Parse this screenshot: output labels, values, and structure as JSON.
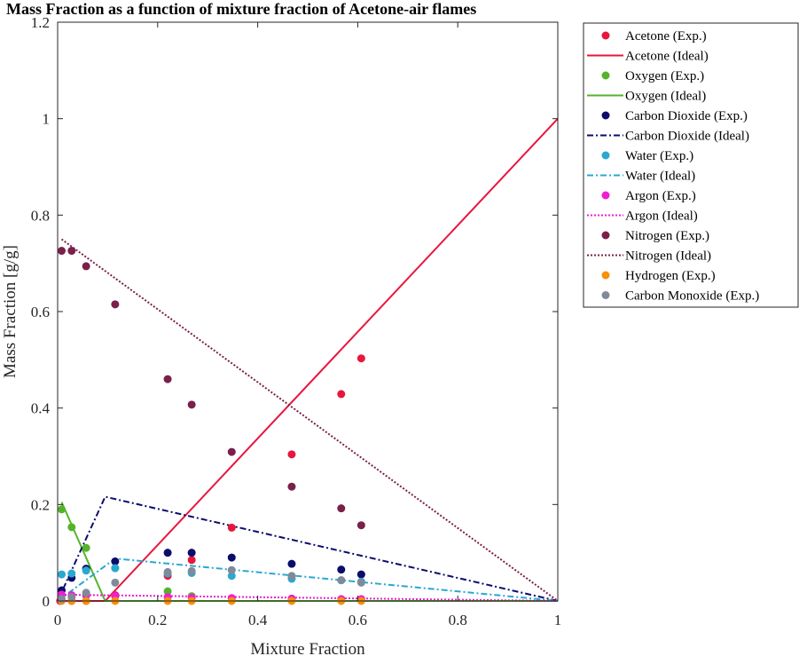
{
  "chart_data": {
    "type": "scatter",
    "title": "Mass Fraction as a function of mixture fraction of Acetone-air flames",
    "xlabel": "Mixture Fraction",
    "ylabel": "Mass Fraction [g/g]",
    "xlim": [
      0,
      1
    ],
    "ylim": [
      0,
      1.2
    ],
    "xticks": [
      0,
      0.2,
      0.4,
      0.6,
      0.8,
      1
    ],
    "xtick_labels": [
      "0",
      "0.2",
      "0.4",
      "0.6",
      "0.8",
      "1"
    ],
    "yticks": [
      0,
      0.2,
      0.4,
      0.6,
      0.8,
      1,
      1.2
    ],
    "ytick_labels": [
      "0",
      "0.2",
      "0.4",
      "0.6",
      "0.8",
      "1",
      "1.2"
    ],
    "grid": false,
    "legend_position": "outside-top-right",
    "series": [
      {
        "name": "Acetone (Exp.)",
        "kind": "scatter",
        "color": "#e8163d",
        "x": [
          0.005,
          0.028,
          0.057,
          0.115,
          0.22,
          0.268,
          0.348,
          0.468,
          0.567,
          0.607
        ],
        "y": [
          0.0,
          0.0,
          0.0,
          0.012,
          0.052,
          0.085,
          0.152,
          0.304,
          0.429,
          0.503
        ]
      },
      {
        "name": "Acetone (Ideal)",
        "kind": "line",
        "style": "solid",
        "color": "#e8163d",
        "x": [
          0,
          0.095,
          1
        ],
        "y": [
          0,
          0,
          1
        ]
      },
      {
        "name": "Oxygen (Exp.)",
        "kind": "scatter",
        "color": "#55b32a",
        "x": [
          0.008,
          0.028,
          0.057,
          0.115,
          0.22,
          0.268,
          0.348,
          0.468,
          0.567,
          0.607
        ],
        "y": [
          0.19,
          0.153,
          0.11,
          0.068,
          0.02,
          0.01,
          0.005,
          0.002,
          0.001,
          0.001
        ]
      },
      {
        "name": "Oxygen (Ideal)",
        "kind": "line",
        "style": "solid",
        "color": "#55b32a",
        "x": [
          0.008,
          0.095,
          0.2,
          0.4,
          0.6,
          1
        ],
        "y": [
          0.205,
          0,
          0,
          0,
          0,
          0
        ]
      },
      {
        "name": "Carbon Dioxide (Exp.)",
        "kind": "scatter",
        "color": "#0b0c6b",
        "x": [
          0.008,
          0.028,
          0.057,
          0.115,
          0.22,
          0.268,
          0.348,
          0.468,
          0.567,
          0.607
        ],
        "y": [
          0.022,
          0.048,
          0.067,
          0.082,
          0.1,
          0.1,
          0.09,
          0.077,
          0.065,
          0.055
        ]
      },
      {
        "name": "Carbon Dioxide (Ideal)",
        "kind": "line",
        "style": "dashdot",
        "color": "#0b0c6b",
        "x": [
          0,
          0.095,
          1
        ],
        "y": [
          0.0,
          0.216,
          0
        ]
      },
      {
        "name": "Water (Exp.)",
        "kind": "scatter",
        "color": "#29a8d1",
        "x": [
          0.008,
          0.028,
          0.057,
          0.115,
          0.22,
          0.268,
          0.348,
          0.468,
          0.567,
          0.607
        ],
        "y": [
          0.055,
          0.057,
          0.063,
          0.068,
          0.057,
          0.058,
          0.052,
          0.046,
          0.043,
          0.04
        ]
      },
      {
        "name": "Water (Ideal)",
        "kind": "line",
        "style": "dashdot",
        "color": "#29a8d1",
        "x": [
          0,
          0.115,
          1
        ],
        "y": [
          0.0,
          0.088,
          0
        ]
      },
      {
        "name": "Argon (Exp.)",
        "kind": "scatter",
        "color": "#ef1ed2",
        "x": [
          0.008,
          0.028,
          0.057,
          0.115,
          0.22,
          0.268,
          0.348,
          0.468,
          0.567,
          0.607
        ],
        "y": [
          0.013,
          0.012,
          0.011,
          0.01,
          0.008,
          0.007,
          0.006,
          0.005,
          0.004,
          0.004
        ]
      },
      {
        "name": "Argon (Ideal)",
        "kind": "line",
        "style": "dotted",
        "color": "#ef1ed2",
        "x": [
          0,
          1
        ],
        "y": [
          0.013,
          0
        ]
      },
      {
        "name": "Nitrogen (Exp.)",
        "kind": "scatter",
        "color": "#7b1f4b",
        "x": [
          0.008,
          0.028,
          0.057,
          0.115,
          0.22,
          0.268,
          0.348,
          0.468,
          0.567,
          0.607
        ],
        "y": [
          0.726,
          0.726,
          0.694,
          0.615,
          0.46,
          0.407,
          0.309,
          0.237,
          0.192,
          0.157
        ]
      },
      {
        "name": "Nitrogen (Ideal)",
        "kind": "line",
        "style": "dotted",
        "color": "#7b1f4b",
        "x": [
          0.008,
          1
        ],
        "y": [
          0.75,
          0
        ]
      },
      {
        "name": "Hydrogen (Exp.)",
        "kind": "scatter",
        "color": "#f7900a",
        "x": [
          0.008,
          0.028,
          0.057,
          0.115,
          0.22,
          0.268,
          0.348,
          0.468,
          0.567,
          0.607
        ],
        "y": [
          0.0,
          0.0,
          0.0,
          0.0,
          0.0,
          0.0,
          0.0,
          0.0,
          0.0,
          0.0
        ]
      },
      {
        "name": "Carbon Monoxide (Exp.)",
        "kind": "scatter",
        "color": "#808a99",
        "x": [
          0.008,
          0.028,
          0.057,
          0.115,
          0.22,
          0.268,
          0.348,
          0.468,
          0.567,
          0.607
        ],
        "y": [
          0.004,
          0.008,
          0.017,
          0.038,
          0.06,
          0.062,
          0.064,
          0.052,
          0.043,
          0.038
        ]
      }
    ]
  }
}
